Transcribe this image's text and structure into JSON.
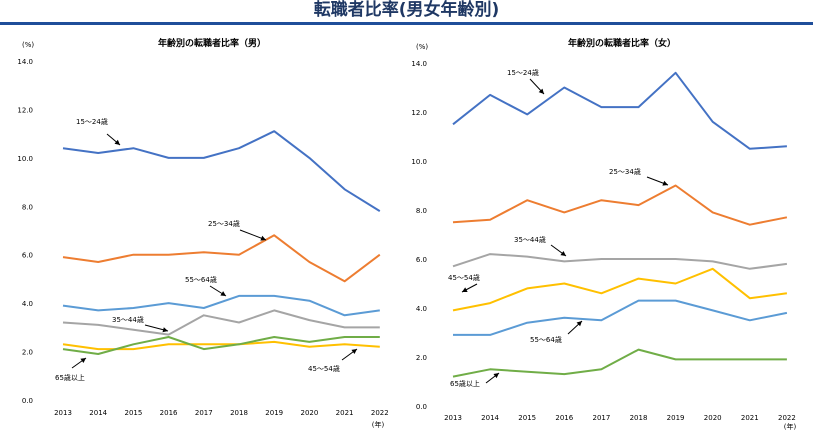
{
  "page_title": "転職者比率(男女年齢別)",
  "chart_data": [
    {
      "type": "line",
      "title": "年齢別の転職者比率（男）",
      "yunit": "(%)",
      "xunit": "(年)",
      "ylim": [
        0,
        14
      ],
      "yticks": [
        "0.0",
        "2.0",
        "4.0",
        "6.0",
        "8.0",
        "10.0",
        "12.0",
        "14.0"
      ],
      "categories": [
        "2013",
        "2014",
        "2015",
        "2016",
        "2017",
        "2018",
        "2019",
        "2020",
        "2021",
        "2022"
      ],
      "grid": false,
      "series": [
        {
          "name": "15～24歳",
          "color": "#4472c4",
          "values": [
            10.4,
            10.2,
            10.4,
            10.0,
            10.0,
            10.4,
            11.1,
            10.0,
            8.7,
            7.8
          ]
        },
        {
          "name": "25～34歳",
          "color": "#ed7d31",
          "values": [
            5.9,
            5.7,
            6.0,
            6.0,
            6.1,
            6.0,
            6.8,
            5.7,
            4.9,
            6.0
          ]
        },
        {
          "name": "55～64歳",
          "color": "#5b9bd5",
          "values": [
            3.9,
            3.7,
            3.8,
            4.0,
            3.8,
            4.3,
            4.3,
            4.1,
            3.5,
            3.7
          ]
        },
        {
          "name": "35～44歳",
          "color": "#a5a5a5",
          "values": [
            3.2,
            3.1,
            2.9,
            2.7,
            3.5,
            3.2,
            3.7,
            3.3,
            3.0,
            3.0
          ]
        },
        {
          "name": "45～54歳",
          "color": "#ffc000",
          "values": [
            2.3,
            2.1,
            2.1,
            2.3,
            2.3,
            2.3,
            2.4,
            2.2,
            2.3,
            2.2
          ]
        },
        {
          "name": "65歳以上",
          "color": "#70ad47",
          "values": [
            2.1,
            1.9,
            2.3,
            2.6,
            2.1,
            2.3,
            2.6,
            2.4,
            2.6,
            2.6
          ]
        }
      ]
    },
    {
      "type": "line",
      "title": "年齢別の転職者比率（女）",
      "yunit": "(%)",
      "xunit": "(年)",
      "ylim": [
        0,
        14
      ],
      "yticks": [
        "0.0",
        "2.0",
        "4.0",
        "6.0",
        "8.0",
        "10.0",
        "12.0",
        "14.0"
      ],
      "categories": [
        "2013",
        "2014",
        "2015",
        "2016",
        "2017",
        "2018",
        "2019",
        "2020",
        "2021",
        "2022"
      ],
      "grid": false,
      "series": [
        {
          "name": "15～24歳",
          "color": "#4472c4",
          "values": [
            11.5,
            12.7,
            11.9,
            13.0,
            12.2,
            12.2,
            13.6,
            11.6,
            10.5,
            10.6
          ]
        },
        {
          "name": "25～34歳",
          "color": "#ed7d31",
          "values": [
            7.5,
            7.6,
            8.4,
            7.9,
            8.4,
            8.2,
            9.0,
            7.9,
            7.4,
            7.7
          ]
        },
        {
          "name": "35～44歳",
          "color": "#a5a5a5",
          "values": [
            5.7,
            6.2,
            6.1,
            5.9,
            6.0,
            6.0,
            6.0,
            5.9,
            5.6,
            5.8
          ]
        },
        {
          "name": "45～54歳",
          "color": "#ffc000",
          "values": [
            3.9,
            4.2,
            4.8,
            5.0,
            4.6,
            5.2,
            5.0,
            5.6,
            4.4,
            4.6
          ]
        },
        {
          "name": "55～64歳",
          "color": "#5b9bd5",
          "values": [
            2.9,
            2.9,
            3.4,
            3.6,
            3.5,
            4.3,
            4.3,
            3.9,
            3.5,
            3.8
          ]
        },
        {
          "name": "65歳以上",
          "color": "#70ad47",
          "values": [
            1.2,
            1.5,
            1.4,
            1.3,
            1.5,
            2.3,
            1.9,
            1.9,
            1.9,
            1.9
          ]
        }
      ]
    }
  ]
}
